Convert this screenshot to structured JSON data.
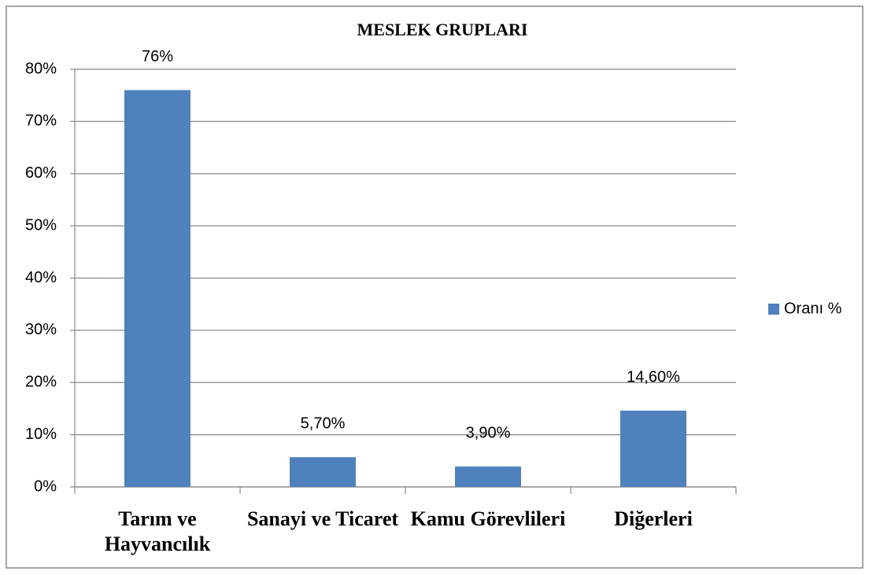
{
  "chart_data": {
    "type": "bar",
    "title": "MESLEK GRUPLARI",
    "categories": [
      "Tarım ve Hayvancılık",
      "Sanayi ve Ticaret",
      "Kamu Görevlileri",
      "Diğerleri"
    ],
    "series": [
      {
        "name": "Oranı %",
        "color": "#4f81bd",
        "values": [
          76,
          5.7,
          3.9,
          14.6
        ],
        "value_labels": [
          "76%",
          "5,70%",
          "3,90%",
          "14,60%"
        ]
      }
    ],
    "ylim": [
      0,
      80
    ],
    "yticks": [
      {
        "value": 0,
        "label": "0%"
      },
      {
        "value": 10,
        "label": "10%"
      },
      {
        "value": 20,
        "label": "20%"
      },
      {
        "value": 30,
        "label": "30%"
      },
      {
        "value": 40,
        "label": "40%"
      },
      {
        "value": 50,
        "label": "50%"
      },
      {
        "value": 60,
        "label": "60%"
      },
      {
        "value": 70,
        "label": "70%"
      },
      {
        "value": 80,
        "label": "80%"
      }
    ],
    "grid": true,
    "legend": "right"
  }
}
